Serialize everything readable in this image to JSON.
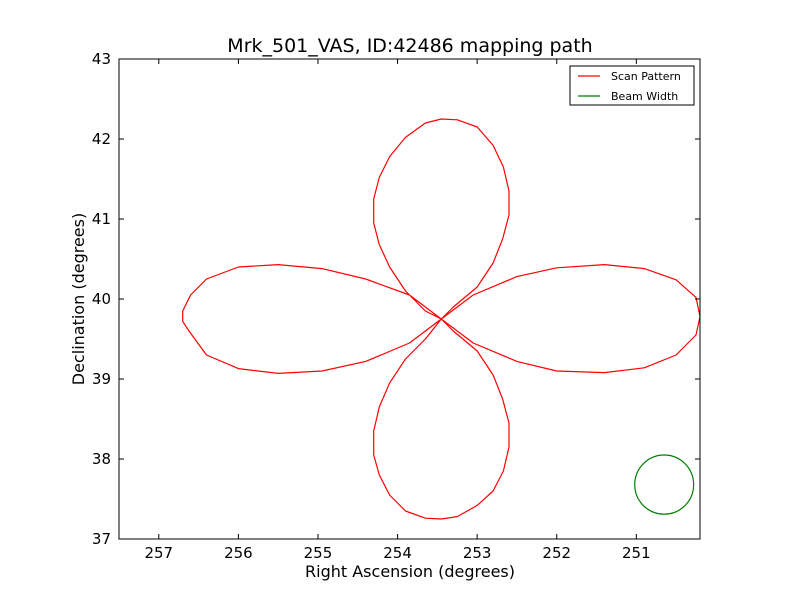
{
  "chart_data": {
    "type": "line",
    "title": "Mrk_501_VAS, ID:42486 mapping path",
    "xlabel": "Right Ascension (degrees)",
    "ylabel": "Declination (degrees)",
    "xlim": [
      257.5,
      250.2
    ],
    "ylim": [
      37,
      43
    ],
    "x_inverted": true,
    "xticks": [
      "257",
      "256",
      "255",
      "254",
      "253",
      "252",
      "251"
    ],
    "yticks": [
      "37",
      "38",
      "39",
      "40",
      "41",
      "42",
      "43"
    ],
    "xtick_values": [
      257,
      256,
      255,
      254,
      253,
      252,
      251
    ],
    "ytick_values": [
      37,
      38,
      39,
      40,
      41,
      42,
      43
    ],
    "grid": false,
    "legend_position": "top-right",
    "series": [
      {
        "name": "Scan Pattern",
        "color": "#ff0000",
        "x": [
          253.45,
          253.05,
          252.5,
          252.0,
          251.4,
          250.9,
          250.5,
          250.25,
          250.2,
          250.25,
          250.5,
          250.9,
          251.4,
          252.0,
          252.5,
          253.05,
          253.45,
          253.3,
          253.0,
          252.8,
          252.68,
          252.6,
          252.6,
          252.67,
          252.8,
          253.0,
          253.25,
          253.45,
          253.65,
          253.9,
          254.1,
          254.23,
          254.3,
          254.3,
          254.23,
          254.1,
          253.9,
          253.65,
          253.45,
          253.85,
          254.4,
          254.95,
          255.5,
          256.0,
          256.4,
          256.6,
          256.7,
          256.7,
          256.62,
          256.4,
          256.0,
          255.5,
          254.95,
          254.4,
          253.85,
          253.45,
          253.65,
          253.9,
          254.1,
          254.23,
          254.3,
          254.3,
          254.23,
          254.1,
          253.9,
          253.65,
          253.45,
          253.25,
          253.0,
          252.8,
          252.67,
          252.6,
          252.6,
          252.68,
          252.8,
          253.0,
          253.3,
          253.45
        ],
        "y": [
          39.75,
          40.05,
          40.28,
          40.39,
          40.43,
          40.38,
          40.24,
          40.02,
          39.78,
          39.55,
          39.3,
          39.14,
          39.08,
          39.1,
          39.22,
          39.45,
          39.75,
          39.9,
          40.15,
          40.45,
          40.75,
          41.05,
          41.35,
          41.65,
          41.92,
          42.15,
          42.24,
          42.25,
          42.2,
          42.02,
          41.78,
          41.52,
          41.25,
          40.95,
          40.68,
          40.4,
          40.1,
          39.85,
          39.75,
          40.05,
          40.25,
          40.38,
          40.43,
          40.4,
          40.25,
          40.05,
          39.85,
          39.72,
          39.6,
          39.3,
          39.13,
          39.07,
          39.1,
          39.22,
          39.45,
          39.75,
          39.5,
          39.25,
          38.95,
          38.65,
          38.35,
          38.05,
          37.8,
          37.55,
          37.35,
          37.26,
          37.25,
          37.28,
          37.42,
          37.6,
          37.85,
          38.15,
          38.45,
          38.75,
          39.05,
          39.35,
          39.6,
          39.75
        ]
      },
      {
        "name": "Beam Width",
        "color": "#008000",
        "center": [
          250.65,
          37.68
        ],
        "radius_deg": 0.37
      }
    ]
  }
}
